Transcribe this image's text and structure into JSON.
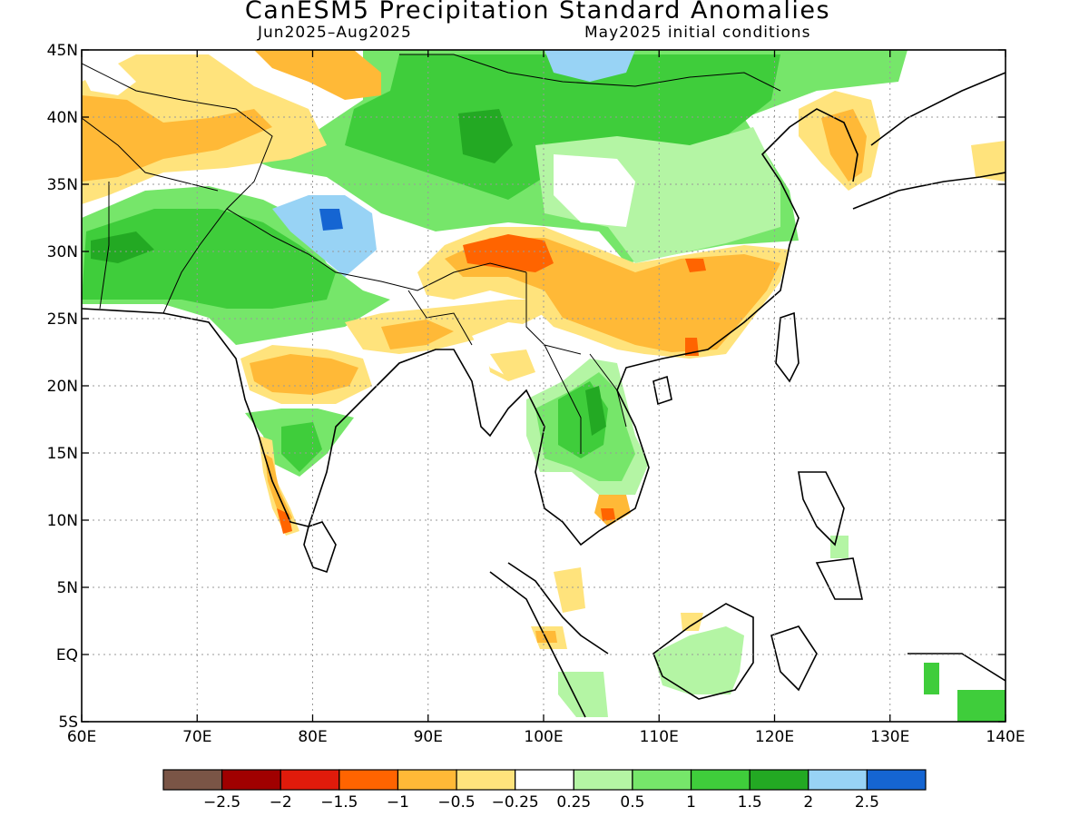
{
  "title": "CanESM5 Precipitation Standard Anomalies",
  "period": "Jun2025–Aug2025",
  "init": "May2025 initial conditions",
  "lat_labels": [
    "45N",
    "40N",
    "35N",
    "30N",
    "25N",
    "20N",
    "15N",
    "10N",
    "5N",
    "EQ",
    "5S"
  ],
  "lon_labels": [
    "60E",
    "70E",
    "80E",
    "90E",
    "100E",
    "110E",
    "120E",
    "130E",
    "140E"
  ],
  "extent": {
    "lon_min": 60,
    "lon_max": 140,
    "lat_min": -5,
    "lat_max": 45
  },
  "colorbar": {
    "colors": [
      "#7a5546",
      "#a00000",
      "#e01b0b",
      "#ff6400",
      "#ffb937",
      "#ffe37c",
      "#ffffff",
      "#b4f5a4",
      "#76e66a",
      "#3fcd3b",
      "#23a923",
      "#98d3f5",
      "#1565d2"
    ],
    "labels": [
      "−2.5",
      "−2",
      "−1.5",
      "−1",
      "−0.5",
      "−0.25",
      "0.25",
      "0.5",
      "1",
      "1.5",
      "2",
      "2.5"
    ]
  }
}
